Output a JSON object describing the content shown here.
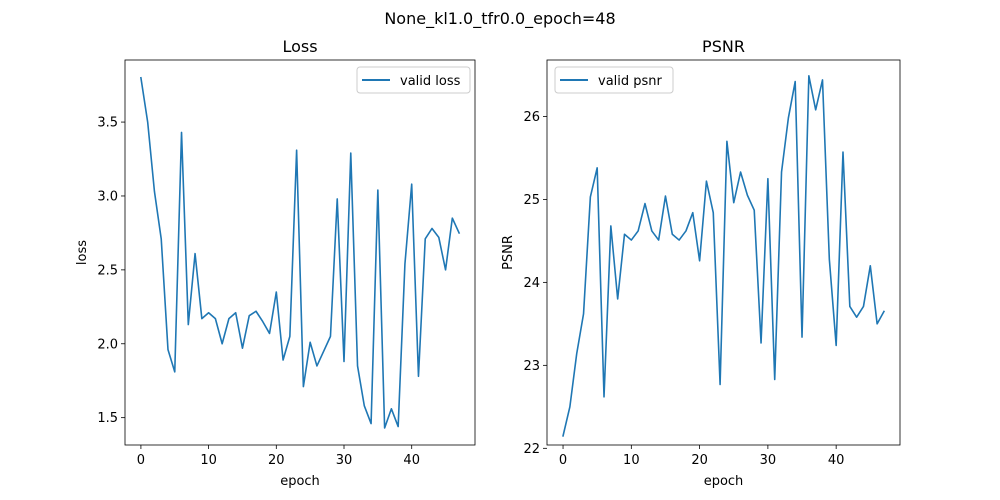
{
  "suptitle": "None_kl1.0_tfr0.0_epoch=48",
  "chart_data": [
    {
      "type": "line",
      "title": "Loss",
      "xlabel": "epoch",
      "ylabel": "loss",
      "xlim": [
        -2.35,
        49.35
      ],
      "ylim": [
        1.315,
        3.92
      ],
      "xticks": [
        0,
        10,
        20,
        30,
        40
      ],
      "yticks": [
        1.5,
        2.0,
        2.5,
        3.0,
        3.5
      ],
      "ytick_labels": [
        "1.5",
        "2.0",
        "2.5",
        "3.0",
        "3.5"
      ],
      "legend": "top-right",
      "color": "#1f77b4",
      "series": [
        {
          "name": "valid loss",
          "x": [
            0,
            1,
            2,
            3,
            4,
            5,
            6,
            7,
            8,
            9,
            10,
            11,
            12,
            13,
            14,
            15,
            16,
            17,
            18,
            19,
            20,
            21,
            22,
            23,
            24,
            25,
            26,
            27,
            28,
            29,
            30,
            31,
            32,
            33,
            34,
            35,
            36,
            37,
            38,
            39,
            40,
            41,
            42,
            43,
            44,
            45,
            46,
            47
          ],
          "y": [
            3.8,
            3.5,
            3.03,
            2.71,
            1.96,
            1.81,
            3.43,
            2.13,
            2.61,
            2.17,
            2.21,
            2.17,
            2.0,
            2.17,
            2.21,
            1.97,
            2.19,
            2.22,
            2.15,
            2.07,
            2.35,
            1.89,
            2.05,
            3.31,
            1.71,
            2.01,
            1.85,
            1.95,
            2.05,
            2.98,
            1.88,
            3.29,
            1.85,
            1.58,
            1.46,
            3.04,
            1.43,
            1.56,
            1.44,
            2.54,
            3.08,
            1.78,
            2.71,
            2.78,
            2.72,
            2.5,
            2.85,
            2.75
          ]
        }
      ]
    },
    {
      "type": "line",
      "title": "PSNR",
      "xlabel": "epoch",
      "ylabel": "PSNR",
      "xlim": [
        -2.35,
        49.35
      ],
      "ylim": [
        22.04,
        26.68
      ],
      "xticks": [
        0,
        10,
        20,
        30,
        40
      ],
      "yticks": [
        22,
        23,
        24,
        25,
        26
      ],
      "ytick_labels": [
        "22",
        "23",
        "24",
        "25",
        "26"
      ],
      "legend": "top-left",
      "color": "#1f77b4",
      "series": [
        {
          "name": "valid psnr",
          "x": [
            0,
            1,
            2,
            3,
            4,
            5,
            6,
            7,
            8,
            9,
            10,
            11,
            12,
            13,
            14,
            15,
            16,
            17,
            18,
            19,
            20,
            21,
            22,
            23,
            24,
            25,
            26,
            27,
            28,
            29,
            30,
            31,
            32,
            33,
            34,
            35,
            36,
            37,
            38,
            39,
            40,
            41,
            42,
            43,
            44,
            45,
            46,
            47
          ],
          "y": [
            22.15,
            22.5,
            23.14,
            23.62,
            25.03,
            25.38,
            22.62,
            24.68,
            23.8,
            24.58,
            24.51,
            24.62,
            24.95,
            24.62,
            24.51,
            25.04,
            24.58,
            24.51,
            24.62,
            24.84,
            24.26,
            25.22,
            24.84,
            22.77,
            25.7,
            24.96,
            25.33,
            25.05,
            24.87,
            23.27,
            25.25,
            22.83,
            25.33,
            25.98,
            26.42,
            23.34,
            26.49,
            26.08,
            26.44,
            24.28,
            23.24,
            25.57,
            23.71,
            23.58,
            23.71,
            24.2,
            23.5,
            23.65
          ]
        }
      ]
    }
  ]
}
